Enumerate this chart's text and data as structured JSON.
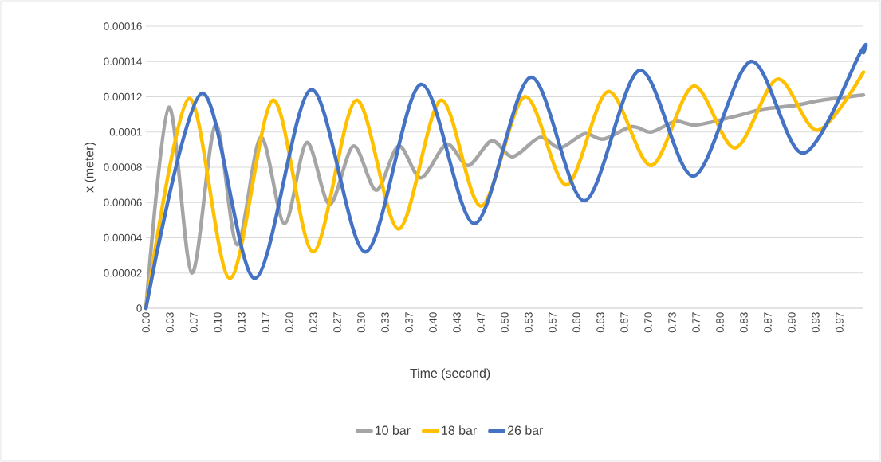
{
  "chart_data": {
    "type": "line",
    "xlabel": "Time (second)",
    "ylabel": "x (meter)",
    "xlim": [
      0,
      1
    ],
    "ylim": [
      0,
      0.00016
    ],
    "xticks": [
      {
        "value": 0,
        "label": "0.00"
      },
      {
        "value": 0.033333,
        "label": "0.03"
      },
      {
        "value": 0.066667,
        "label": "0.07"
      },
      {
        "value": 0.1,
        "label": "0.10"
      },
      {
        "value": 0.133333,
        "label": "0.13"
      },
      {
        "value": 0.166667,
        "label": "0.17"
      },
      {
        "value": 0.2,
        "label": "0.20"
      },
      {
        "value": 0.233333,
        "label": "0.23"
      },
      {
        "value": 0.266667,
        "label": "0.27"
      },
      {
        "value": 0.3,
        "label": "0.30"
      },
      {
        "value": 0.333333,
        "label": "0.33"
      },
      {
        "value": 0.366667,
        "label": "0.37"
      },
      {
        "value": 0.4,
        "label": "0.40"
      },
      {
        "value": 0.433333,
        "label": "0.43"
      },
      {
        "value": 0.466667,
        "label": "0.47"
      },
      {
        "value": 0.5,
        "label": "0.50"
      },
      {
        "value": 0.533333,
        "label": "0.53"
      },
      {
        "value": 0.566667,
        "label": "0.57"
      },
      {
        "value": 0.6,
        "label": "0.60"
      },
      {
        "value": 0.633333,
        "label": "0.63"
      },
      {
        "value": 0.666667,
        "label": "0.67"
      },
      {
        "value": 0.7,
        "label": "0.70"
      },
      {
        "value": 0.733333,
        "label": "0.73"
      },
      {
        "value": 0.766667,
        "label": "0.77"
      },
      {
        "value": 0.8,
        "label": "0.80"
      },
      {
        "value": 0.833333,
        "label": "0.83"
      },
      {
        "value": 0.866667,
        "label": "0.87"
      },
      {
        "value": 0.9,
        "label": "0.90"
      },
      {
        "value": 0.933333,
        "label": "0.93"
      },
      {
        "value": 0.966667,
        "label": "0.97"
      }
    ],
    "yticks": [
      {
        "value": 0,
        "label": "0"
      },
      {
        "value": 2e-05,
        "label": "0.00002"
      },
      {
        "value": 4e-05,
        "label": "0.00004"
      },
      {
        "value": 6e-05,
        "label": "0.00006"
      },
      {
        "value": 8e-05,
        "label": "0.00008"
      },
      {
        "value": 0.0001,
        "label": "0.0001"
      },
      {
        "value": 0.00012,
        "label": "0.00012"
      },
      {
        "value": 0.00014,
        "label": "0.00014"
      },
      {
        "value": 0.00016,
        "label": "0.00016"
      }
    ],
    "grid": "y",
    "legend": "bottom",
    "marker": "none",
    "line_style": "solid",
    "series": [
      {
        "name": "10 bar",
        "color": "#a5a5a5",
        "x": [
          0,
          0.032,
          0.064,
          0.097,
          0.127,
          0.16,
          0.193,
          0.224,
          0.256,
          0.289,
          0.321,
          0.352,
          0.383,
          0.419,
          0.449,
          0.482,
          0.511,
          0.549,
          0.577,
          0.611,
          0.638,
          0.677,
          0.704,
          0.738,
          0.767,
          0.822,
          0.86,
          0.904,
          0.941,
          1.0
        ],
        "values": [
          0,
          0.000114,
          2e-05,
          0.000104,
          3.6e-05,
          9.7e-05,
          4.8e-05,
          9.4e-05,
          5.9e-05,
          9.2e-05,
          6.7e-05,
          9.2e-05,
          7.4e-05,
          9.3e-05,
          8.1e-05,
          9.5e-05,
          8.6e-05,
          9.7e-05,
          9.1e-05,
          9.9e-05,
          9.6e-05,
          0.000103,
          0.0001,
          0.000106,
          0.000104,
          0.000109,
          0.000113,
          0.000115,
          0.000118,
          0.000121
        ]
      },
      {
        "name": "18 bar",
        "color": "#ffc000",
        "x": [
          0,
          0.06,
          0.117,
          0.177,
          0.233,
          0.293,
          0.352,
          0.411,
          0.467,
          0.528,
          0.586,
          0.644,
          0.704,
          0.763,
          0.821,
          0.88,
          0.936,
          1.0
        ],
        "values": [
          0,
          0.000119,
          1.7e-05,
          0.000118,
          3.2e-05,
          0.000118,
          4.5e-05,
          0.000118,
          5.8e-05,
          0.00012,
          7e-05,
          0.000123,
          8.1e-05,
          0.000126,
          9.1e-05,
          0.00013,
          0.000101,
          0.000134
        ]
      },
      {
        "name": "26 bar",
        "color": "#4472c4",
        "x": [
          0,
          0.078,
          0.152,
          0.23,
          0.306,
          0.383,
          0.458,
          0.536,
          0.611,
          0.688,
          0.763,
          0.843,
          0.916,
          0.997,
          1.0
        ],
        "values": [
          0,
          0.000122,
          1.7e-05,
          0.000124,
          3.2e-05,
          0.000127,
          4.8e-05,
          0.000131,
          6.1e-05,
          0.000135,
          7.5e-05,
          0.00014,
          8.8e-05,
          0.000146,
          0.000145
        ]
      }
    ]
  }
}
